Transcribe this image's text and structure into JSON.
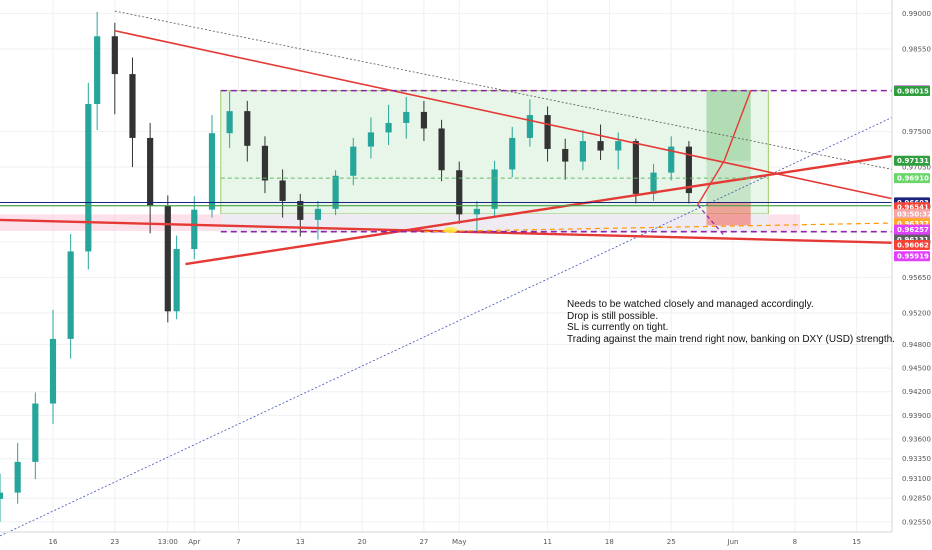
{
  "chart_data": {
    "type": "candlestick",
    "title": "",
    "xlabel": "",
    "ylabel": "",
    "ylim": [
      0.9242,
      0.9917
    ],
    "x_range": [
      "2020-03-10",
      "2020-06-19"
    ],
    "y_ticks": [
      "0.99000",
      "0.98550",
      "0.97500",
      "0.97050",
      "0.96550",
      "0.96100",
      "0.95650",
      "0.95200",
      "0.94800",
      "0.94500",
      "0.94200",
      "0.93900",
      "0.93600",
      "0.93350",
      "0.93100",
      "0.92850",
      "0.92550"
    ],
    "x_ticks": [
      {
        "date": "2020-03-16",
        "label": "16"
      },
      {
        "date": "2020-03-23",
        "label": "23"
      },
      {
        "date": "2020-03-29",
        "label": "13:00"
      },
      {
        "date": "2020-04-01",
        "label": "Apr"
      },
      {
        "date": "2020-04-06",
        "label": "7"
      },
      {
        "date": "2020-04-13",
        "label": "13"
      },
      {
        "date": "2020-04-20",
        "label": "20"
      },
      {
        "date": "2020-04-27",
        "label": "27"
      },
      {
        "date": "2020-05-01",
        "label": "May"
      },
      {
        "date": "2020-05-11",
        "label": "11"
      },
      {
        "date": "2020-05-18",
        "label": "18"
      },
      {
        "date": "2020-05-25",
        "label": "25"
      },
      {
        "date": "2020-06-01",
        "label": "Jun"
      },
      {
        "date": "2020-06-08",
        "label": "8"
      },
      {
        "date": "2020-06-15",
        "label": "15"
      }
    ],
    "price_levels": [
      {
        "value": 0.98021,
        "label": "0.98021",
        "color": "#9c27b0"
      },
      {
        "value": 0.98015,
        "label": "0.98015",
        "color": "#2e9e3e"
      },
      {
        "value": 0.97131,
        "label": "0.97131",
        "color": "#2e9e3e"
      },
      {
        "value": 0.9691,
        "label": "0.96910",
        "color": "#6ad66a"
      },
      {
        "value": 0.96603,
        "label": "0.96603",
        "color": "#1a237e"
      },
      {
        "value": 0.96541,
        "label": "0.96541",
        "color": "#f44336"
      },
      {
        "value": 0.96453,
        "label": "03:50:32",
        "color": "#f6a6a6"
      },
      {
        "value": 0.96337,
        "label": "0.96337",
        "color": "#ffa726"
      },
      {
        "value": 0.96236,
        "label": "0.96236",
        "color": "#2e9e3e"
      },
      {
        "value": 0.96131,
        "label": "0.96131",
        "color": "#616161"
      },
      {
        "value": 0.96257,
        "label": "0.96257",
        "color": "#e040fb"
      },
      {
        "value": 0.96062,
        "label": "0.96062",
        "color": "#f44336"
      },
      {
        "value": 0.95919,
        "label": "0.95919",
        "color": "#e040fb"
      }
    ],
    "candles": [
      [
        "2020-03-10",
        0.9284,
        0.9316,
        0.9255,
        0.9292
      ],
      [
        "2020-03-12",
        0.9292,
        0.9355,
        0.9278,
        0.9331
      ],
      [
        "2020-03-14",
        0.9331,
        0.9419,
        0.9309,
        0.9405
      ],
      [
        "2020-03-16",
        0.9405,
        0.9524,
        0.9379,
        0.9487
      ],
      [
        "2020-03-18",
        0.9487,
        0.962,
        0.9462,
        0.9598
      ],
      [
        "2020-03-20",
        0.9598,
        0.9812,
        0.9575,
        0.9785
      ],
      [
        "2020-03-21",
        0.9785,
        0.9902,
        0.9752,
        0.9871
      ],
      [
        "2020-03-23",
        0.9871,
        0.9888,
        0.9772,
        0.9823
      ],
      [
        "2020-03-25",
        0.9823,
        0.9844,
        0.9705,
        0.9742
      ],
      [
        "2020-03-27",
        0.9742,
        0.9761,
        0.9621,
        0.9656
      ],
      [
        "2020-03-29",
        0.9656,
        0.9669,
        0.9508,
        0.9522
      ],
      [
        "2020-03-30",
        0.9522,
        0.9618,
        0.9512,
        0.9601
      ],
      [
        "2020-04-01",
        0.9601,
        0.9668,
        0.9588,
        0.9651
      ],
      [
        "2020-04-03",
        0.9651,
        0.9771,
        0.9641,
        0.9748
      ],
      [
        "2020-04-05",
        0.9748,
        0.9801,
        0.9729,
        0.9776
      ],
      [
        "2020-04-07",
        0.9776,
        0.9789,
        0.9712,
        0.9732
      ],
      [
        "2020-04-09",
        0.9732,
        0.9744,
        0.9672,
        0.9688
      ],
      [
        "2020-04-11",
        0.9688,
        0.9702,
        0.9641,
        0.9662
      ],
      [
        "2020-04-13",
        0.9662,
        0.9671,
        0.9617,
        0.9638
      ],
      [
        "2020-04-15",
        0.9638,
        0.9662,
        0.9613,
        0.9652
      ],
      [
        "2020-04-17",
        0.9652,
        0.9701,
        0.9644,
        0.9694
      ],
      [
        "2020-04-19",
        0.9694,
        0.9742,
        0.9682,
        0.9731
      ],
      [
        "2020-04-21",
        0.9731,
        0.9768,
        0.9716,
        0.9749
      ],
      [
        "2020-04-23",
        0.9749,
        0.9784,
        0.9733,
        0.9761
      ],
      [
        "2020-04-25",
        0.9761,
        0.9794,
        0.9741,
        0.9775
      ],
      [
        "2020-04-27",
        0.9775,
        0.9789,
        0.9738,
        0.9754
      ],
      [
        "2020-04-29",
        0.9754,
        0.9765,
        0.9687,
        0.9701
      ],
      [
        "2020-05-01",
        0.9701,
        0.9712,
        0.9633,
        0.9645
      ],
      [
        "2020-05-03",
        0.9645,
        0.9662,
        0.9621,
        0.9652
      ],
      [
        "2020-05-05",
        0.9652,
        0.9713,
        0.9641,
        0.9702
      ],
      [
        "2020-05-07",
        0.9702,
        0.9756,
        0.9692,
        0.9742
      ],
      [
        "2020-05-09",
        0.9742,
        0.9791,
        0.9731,
        0.9771
      ],
      [
        "2020-05-11",
        0.9771,
        0.9782,
        0.9712,
        0.9728
      ],
      [
        "2020-05-13",
        0.9728,
        0.9741,
        0.9689,
        0.9712
      ],
      [
        "2020-05-15",
        0.9712,
        0.9752,
        0.9701,
        0.9738
      ],
      [
        "2020-05-17",
        0.9738,
        0.9759,
        0.9714,
        0.9726
      ],
      [
        "2020-05-19",
        0.9726,
        0.9749,
        0.9702,
        0.9738
      ],
      [
        "2020-05-21",
        0.9738,
        0.9741,
        0.9659,
        0.9671
      ],
      [
        "2020-05-23",
        0.9671,
        0.9709,
        0.9662,
        0.9698
      ],
      [
        "2020-05-25",
        0.9698,
        0.9744,
        0.9688,
        0.9731
      ],
      [
        "2020-05-27",
        0.9731,
        0.9738,
        0.9659,
        0.9672
      ]
    ],
    "text": {
      "drop_line": "Drop is still possible.",
      "intro_line": "Needs to be watched closely and managed accordingly.",
      "sl_line": "SL is currently on tight.",
      "trend_line": "Trading against the main trend right now, banking on DXY (USD) strength."
    }
  },
  "colors": {
    "trendline": "#e53935",
    "channel": "#8e24aa",
    "box_green": "#4caf50",
    "box_red": "#f44336",
    "candle_up": "#26a69a",
    "candle_down": "#333333",
    "pink_zone": "#f8bbd0",
    "blue_dotted": "#3f51b5",
    "orange_dashed": "#ff9800"
  }
}
